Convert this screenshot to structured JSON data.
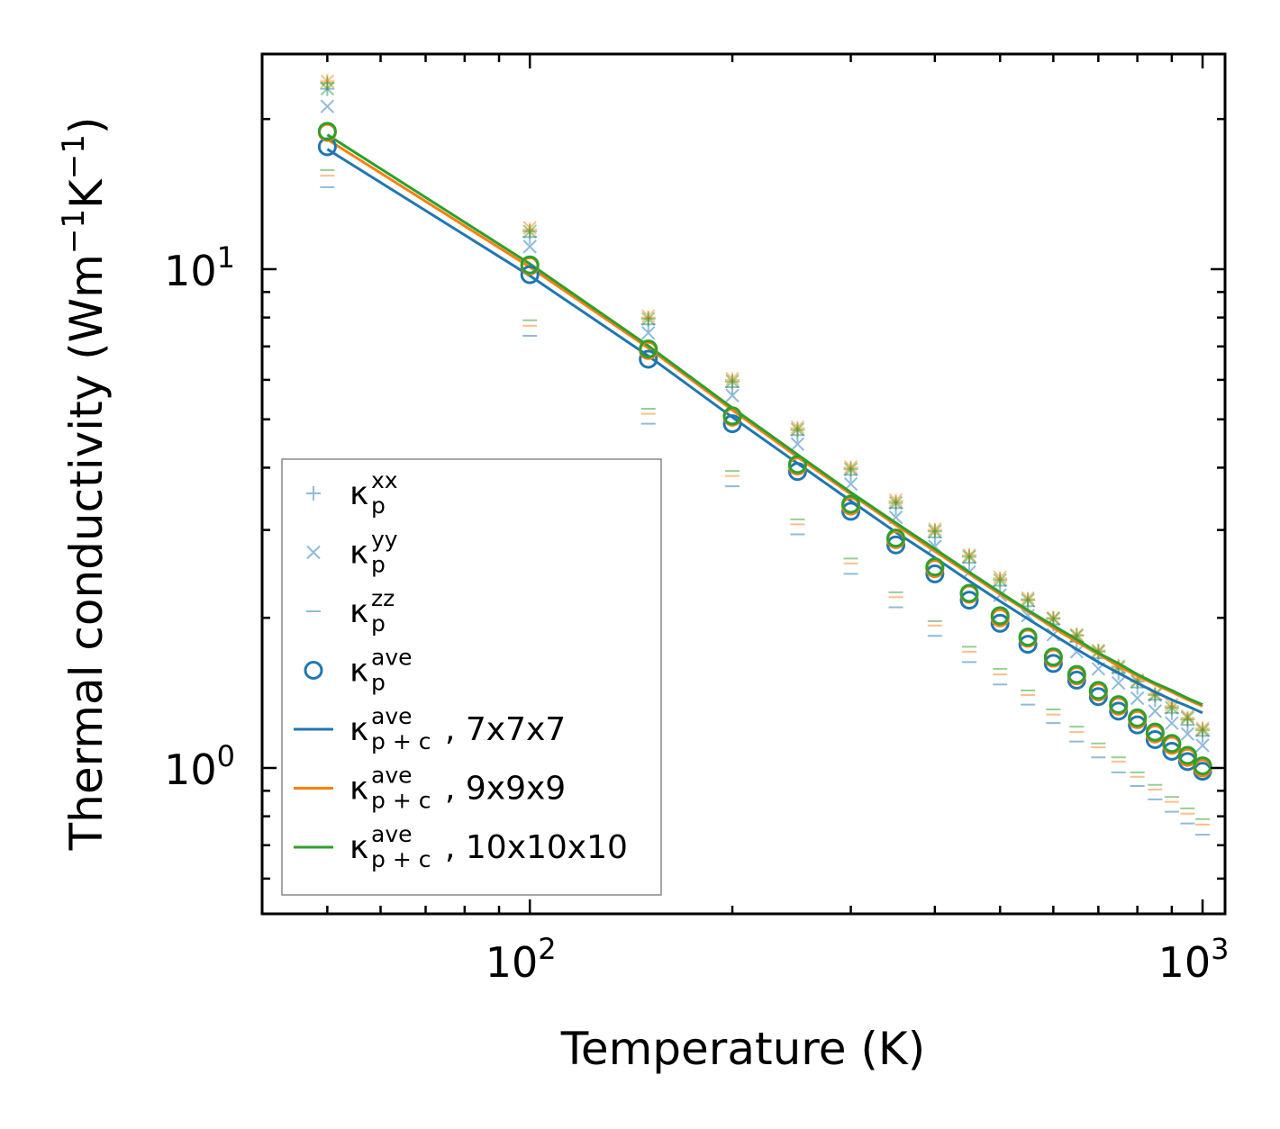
{
  "chart_data": {
    "type": "scatter",
    "title": "",
    "xlabel": "Temperature (K)",
    "ylabel_main": "Thermal conductivity (Wm",
    "ylabel_exp1": "−1",
    "ylabel_mid": "K",
    "ylabel_exp2": "−1",
    "ylabel_end": ")",
    "xscale": "log",
    "yscale": "log",
    "xlim": [
      40,
      1080
    ],
    "ylim": [
      0.51,
      27
    ],
    "x_tick_labels": [
      {
        "value": 100,
        "base": "10",
        "exp": "2"
      },
      {
        "value": 1000,
        "base": "10",
        "exp": "3"
      }
    ],
    "y_tick_labels": [
      {
        "value": 1,
        "base": "10",
        "exp": "0"
      },
      {
        "value": 10,
        "base": "10",
        "exp": "1"
      }
    ],
    "colors": {
      "c7": "#1f77b4",
      "c9": "#ff7f0e",
      "c10": "#2ca02c"
    },
    "x": [
      50,
      100,
      150,
      200,
      250,
      300,
      350,
      400,
      450,
      500,
      550,
      600,
      650,
      700,
      750,
      800,
      850,
      900,
      950,
      1000
    ],
    "series": [
      {
        "name": "kappa_p_xx 7x7x7",
        "kind": "plus",
        "color": "#1f77b4",
        "values": [
          23.0,
          11.6,
          7.75,
          5.8,
          4.65,
          3.87,
          3.32,
          2.9,
          2.58,
          2.32,
          2.11,
          1.94,
          1.79,
          1.66,
          1.55,
          1.45,
          1.37,
          1.29,
          1.22,
          1.16
        ]
      },
      {
        "name": "kappa_p_xx 9x9x9",
        "kind": "plus",
        "color": "#ff7f0e",
        "values": [
          23.8,
          12.0,
          8.0,
          6.0,
          4.8,
          4.0,
          3.43,
          3.0,
          2.67,
          2.4,
          2.18,
          2.0,
          1.85,
          1.72,
          1.6,
          1.5,
          1.41,
          1.33,
          1.26,
          1.2
        ]
      },
      {
        "name": "kappa_p_xx 10x10x10",
        "kind": "plus",
        "color": "#2ca02c",
        "values": [
          23.6,
          11.9,
          7.95,
          5.95,
          4.76,
          3.97,
          3.4,
          2.98,
          2.65,
          2.38,
          2.17,
          1.99,
          1.84,
          1.71,
          1.59,
          1.49,
          1.4,
          1.32,
          1.25,
          1.19
        ]
      },
      {
        "name": "kappa_p_yy 7x7x7",
        "kind": "cross",
        "color": "#1f77b4",
        "values": [
          21.2,
          11.1,
          7.45,
          5.58,
          4.46,
          3.71,
          3.18,
          2.78,
          2.47,
          2.22,
          2.02,
          1.85,
          1.71,
          1.58,
          1.48,
          1.38,
          1.3,
          1.23,
          1.17,
          1.11
        ]
      },
      {
        "name": "kappa_p_yy 9x9x9",
        "kind": "cross",
        "color": "#ff7f0e",
        "values": [
          23.8,
          12.1,
          8.05,
          6.03,
          4.82,
          4.01,
          3.44,
          3.01,
          2.67,
          2.41,
          2.19,
          2.0,
          1.85,
          1.72,
          1.6,
          1.5,
          1.41,
          1.34,
          1.27,
          1.2
        ]
      },
      {
        "name": "kappa_p_yy 10x10x10",
        "kind": "cross",
        "color": "#2ca02c",
        "values": [
          23.0,
          11.9,
          7.95,
          5.96,
          4.77,
          3.97,
          3.4,
          2.98,
          2.65,
          2.38,
          2.17,
          1.99,
          1.84,
          1.71,
          1.59,
          1.49,
          1.4,
          1.32,
          1.26,
          1.19
        ]
      },
      {
        "name": "kappa_p_zz 7x7x7",
        "kind": "tick",
        "color": "#1f77b4",
        "values": [
          14.6,
          7.35,
          4.9,
          3.67,
          2.94,
          2.45,
          2.1,
          1.84,
          1.63,
          1.47,
          1.34,
          1.23,
          1.13,
          1.05,
          0.98,
          0.92,
          0.865,
          0.817,
          0.774,
          0.735
        ]
      },
      {
        "name": "kappa_p_zz 9x9x9",
        "kind": "tick",
        "color": "#ff7f0e",
        "values": [
          15.4,
          7.7,
          5.13,
          3.85,
          3.08,
          2.57,
          2.2,
          1.93,
          1.71,
          1.54,
          1.4,
          1.28,
          1.18,
          1.1,
          1.03,
          0.96,
          0.905,
          0.855,
          0.81,
          0.77
        ]
      },
      {
        "name": "kappa_p_zz 10x10x10",
        "kind": "tick",
        "color": "#2ca02c",
        "values": [
          15.8,
          7.9,
          5.25,
          3.94,
          3.15,
          2.63,
          2.25,
          1.97,
          1.75,
          1.58,
          1.43,
          1.31,
          1.21,
          1.12,
          1.05,
          0.98,
          0.925,
          0.875,
          0.83,
          0.79
        ]
      },
      {
        "name": "kappa_p_ave 7x7x7",
        "kind": "circle",
        "color": "#1f77b4",
        "values": [
          17.6,
          9.75,
          6.6,
          4.9,
          3.93,
          3.27,
          2.8,
          2.45,
          2.17,
          1.95,
          1.77,
          1.62,
          1.5,
          1.39,
          1.3,
          1.22,
          1.14,
          1.08,
          1.03,
          0.985
        ]
      },
      {
        "name": "kappa_p_ave 9x9x9",
        "kind": "circle",
        "color": "#ff7f0e",
        "values": [
          18.8,
          10.15,
          6.87,
          5.05,
          4.03,
          3.35,
          2.87,
          2.51,
          2.23,
          2.0,
          1.82,
          1.66,
          1.53,
          1.42,
          1.33,
          1.25,
          1.17,
          1.11,
          1.05,
          1.0
        ]
      },
      {
        "name": "kappa_p_ave 10x10x10",
        "kind": "circle",
        "color": "#2ca02c",
        "values": [
          18.9,
          10.2,
          6.92,
          5.08,
          4.06,
          3.38,
          2.89,
          2.53,
          2.24,
          2.02,
          1.83,
          1.67,
          1.54,
          1.43,
          1.34,
          1.26,
          1.18,
          1.12,
          1.06,
          1.01
        ]
      },
      {
        "name": "kappa_p+c_ave 7x7x7",
        "kind": "line",
        "color": "#1f77b4",
        "values": [
          17.4,
          9.7,
          6.7,
          5.05,
          4.08,
          3.43,
          2.97,
          2.64,
          2.37,
          2.16,
          1.99,
          1.85,
          1.73,
          1.63,
          1.55,
          1.48,
          1.42,
          1.37,
          1.33,
          1.29
        ]
      },
      {
        "name": "kappa_p+c_ave 9x9x9",
        "kind": "line",
        "color": "#ff7f0e",
        "values": [
          18.2,
          10.1,
          6.95,
          5.22,
          4.2,
          3.54,
          3.07,
          2.72,
          2.45,
          2.23,
          2.06,
          1.91,
          1.79,
          1.69,
          1.6,
          1.53,
          1.47,
          1.42,
          1.37,
          1.33
        ]
      },
      {
        "name": "kappa_p+c_ave 10x10x10",
        "kind": "line",
        "color": "#2ca02c",
        "values": [
          18.6,
          10.25,
          7.02,
          5.27,
          4.25,
          3.57,
          3.1,
          2.75,
          2.47,
          2.25,
          2.07,
          1.93,
          1.81,
          1.7,
          1.62,
          1.54,
          1.48,
          1.43,
          1.38,
          1.34
        ]
      }
    ],
    "legend": {
      "position": "lower-left",
      "entries": [
        {
          "kind": "plus",
          "color": "#1f77b4",
          "symbol": "κ",
          "sub": "p",
          "sup": "xx",
          "suffix": ""
        },
        {
          "kind": "cross",
          "color": "#1f77b4",
          "symbol": "κ",
          "sub": "p",
          "sup": "yy",
          "suffix": ""
        },
        {
          "kind": "tick",
          "color": "#1f77b4",
          "symbol": "κ",
          "sub": "p",
          "sup": "zz",
          "suffix": ""
        },
        {
          "kind": "circle",
          "color": "#1f77b4",
          "symbol": "κ",
          "sub": "p",
          "sup": "ave",
          "suffix": ""
        },
        {
          "kind": "line",
          "color": "#1f77b4",
          "symbol": "κ",
          "sub": "p + c",
          "sup": "ave",
          "suffix": ", 7x7x7"
        },
        {
          "kind": "line",
          "color": "#ff7f0e",
          "symbol": "κ",
          "sub": "p + c",
          "sup": "ave",
          "suffix": ", 9x9x9"
        },
        {
          "kind": "line",
          "color": "#2ca02c",
          "symbol": "κ",
          "sub": "p + c",
          "sup": "ave",
          "suffix": ", 10x10x10"
        }
      ]
    }
  }
}
